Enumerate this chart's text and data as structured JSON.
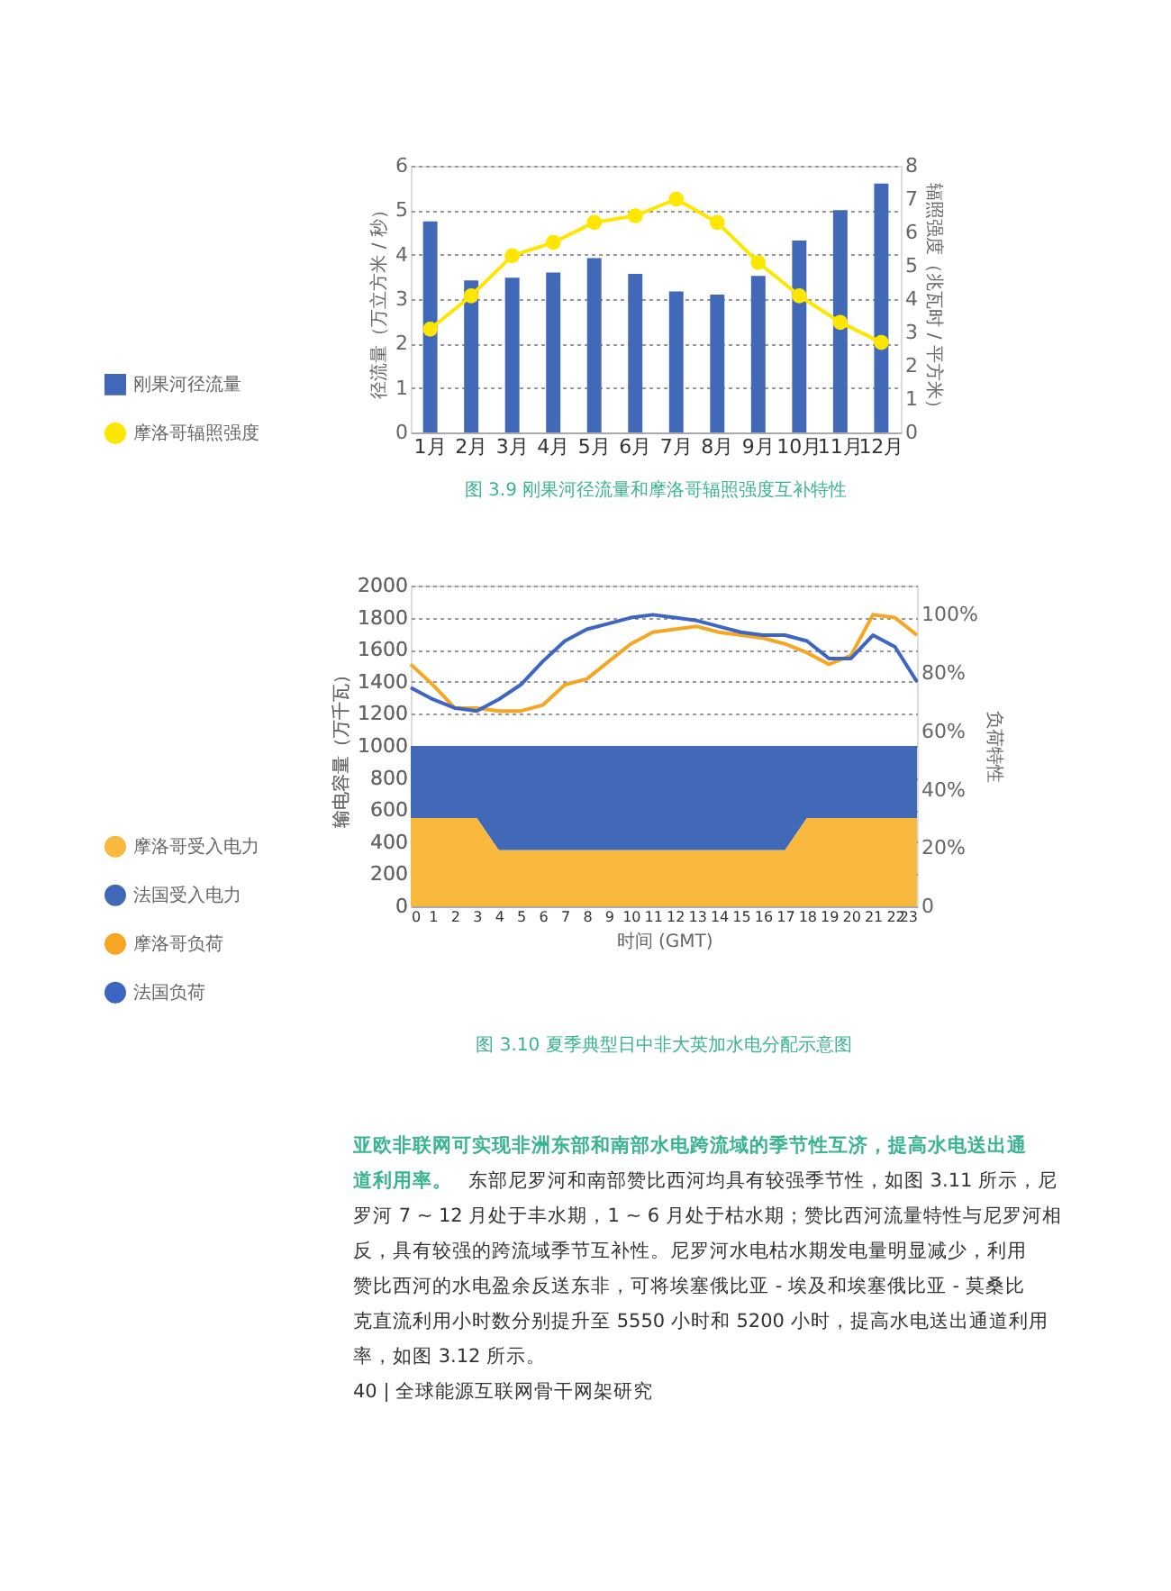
{
  "chart_data": [
    {
      "type": "bar",
      "title": "图 3.9   刚果河径流量和摩洛哥辐照强度互补特性",
      "ylabel": "径流量（万立方米 / 秒）",
      "y2label": "辐照强度（兆瓦时 / 平方米）",
      "categories": [
        "1月",
        "2月",
        "3月",
        "4月",
        "5月",
        "6月",
        "7月",
        "8月",
        "9月",
        "10月",
        "11月",
        "12月"
      ],
      "series": [
        {
          "name": "刚果河径流量",
          "type": "bar",
          "color": "#4169b8",
          "values": [
            4.75,
            3.42,
            3.48,
            3.6,
            3.92,
            3.57,
            3.17,
            3.1,
            3.52,
            4.32,
            5.0,
            5.6
          ]
        },
        {
          "name": "摩洛哥辐照强度",
          "type": "line",
          "axis": "y2",
          "color": "#ffe600",
          "marker": "circle",
          "values": [
            3.1,
            4.1,
            5.3,
            5.7,
            6.3,
            6.5,
            7.0,
            6.3,
            5.1,
            4.1,
            3.3,
            2.7
          ]
        }
      ],
      "ylim": [
        0,
        6
      ],
      "yticks": [
        0,
        1,
        2,
        3,
        4,
        5,
        6
      ],
      "y2lim": [
        0,
        8
      ],
      "y2ticks": [
        0,
        1,
        2,
        3,
        4,
        5,
        6,
        7,
        8
      ],
      "grid": "y",
      "legend": "left"
    },
    {
      "type": "area",
      "title": "图 3.10   夏季典型日中非大英加水电分配示意图",
      "xlabel": "时间 (GMT)",
      "ylabel": "输电容量（万千瓦）",
      "y2label": "负荷特性",
      "stacked": true,
      "x": [
        0,
        1,
        2,
        3,
        4,
        5,
        6,
        7,
        8,
        9,
        10,
        11,
        12,
        13,
        14,
        15,
        16,
        17,
        18,
        19,
        20,
        21,
        22,
        23
      ],
      "series": [
        {
          "name": "摩洛哥受入电力",
          "type": "area",
          "color": "#f9b93e",
          "values": [
            550,
            550,
            550,
            550,
            350,
            350,
            350,
            350,
            350,
            350,
            350,
            350,
            350,
            350,
            350,
            350,
            350,
            350,
            550,
            550,
            550,
            550,
            550,
            550
          ]
        },
        {
          "name": "法国受入电力",
          "type": "area",
          "color": "#4169b8",
          "values": [
            450,
            450,
            450,
            450,
            650,
            650,
            650,
            650,
            650,
            650,
            650,
            650,
            650,
            650,
            650,
            650,
            650,
            650,
            450,
            450,
            450,
            450,
            450,
            450
          ]
        },
        {
          "name": "摩洛哥负荷",
          "type": "line",
          "axis": "y2",
          "color": "#f6a623",
          "values": [
            83,
            76,
            68,
            68,
            67,
            67,
            69,
            76,
            78,
            84,
            90,
            94,
            95,
            96,
            94,
            93,
            92,
            90,
            87,
            83,
            86,
            100,
            99,
            93
          ]
        },
        {
          "name": "法国负荷",
          "type": "line",
          "axis": "y2",
          "color": "#3d66c4",
          "values": [
            75,
            71,
            68,
            67,
            71,
            76,
            84,
            91,
            95,
            97,
            99,
            100,
            99,
            98,
            96,
            94,
            93,
            93,
            91,
            85,
            85,
            93,
            89,
            77
          ]
        }
      ],
      "xlim": [
        0,
        23
      ],
      "xticks": [
        0,
        1,
        2,
        3,
        4,
        5,
        6,
        7,
        8,
        9,
        10,
        11,
        12,
        13,
        14,
        15,
        16,
        17,
        18,
        19,
        20,
        21,
        22,
        23
      ],
      "ylim": [
        0,
        2000
      ],
      "yticks": [
        0,
        200,
        400,
        600,
        800,
        1000,
        1200,
        1400,
        1600,
        1800,
        2000
      ],
      "y2lim": [
        0,
        110
      ],
      "y2ticks": [
        {
          "value": 0,
          "label": "0"
        },
        {
          "value": 20,
          "label": "20%"
        },
        {
          "value": 40,
          "label": "40%"
        },
        {
          "value": 60,
          "label": "60%"
        },
        {
          "value": 80,
          "label": "80%"
        },
        {
          "value": 100,
          "label": "100%"
        }
      ],
      "grid": "y",
      "legend": "left"
    },
    {
      "type": "other",
      "annotations": [
        "亚欧非联网可实现非洲东部和南部水电跨流域的季节性互济，提高水电送出通",
        "道利用率。",
        "东部尼罗河和南部赞比西河均具有较强季节性，如图 3.11 所示，尼",
        "罗河 7 ~ 12 月处于丰水期，1 ~ 6 月处于枯水期；赞比西河流量特性与尼罗河相",
        "反，具有较强的跨流域季节互补性。尼罗河水电枯水期发电量明显减少，利用",
        "赞比西河的水电盈余反送东非，可将埃塞俄比亚 - 埃及和埃塞俄比亚 - 莫桑比",
        "克直流利用小时数分别提升至 5550 小时和 5200 小时，提高水电送出通道利用",
        "率，如图 3.12 所示。",
        "40  |  全球能源互联网骨干网架研究"
      ]
    }
  ]
}
